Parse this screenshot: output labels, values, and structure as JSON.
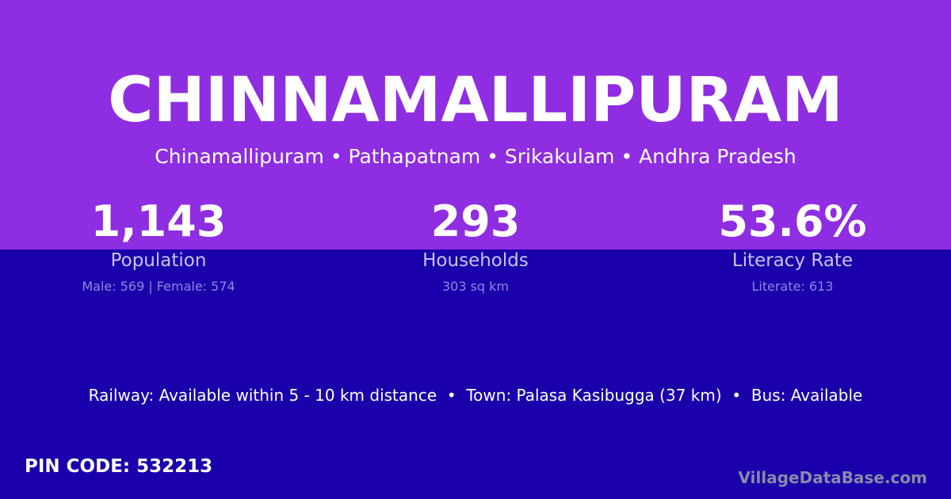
{
  "colors": {
    "top_bg": "#8e2de2",
    "bottom_bg": "#1a00aa"
  },
  "title": "CHINNAMALLIPURAM",
  "subtitle": "Chinamallipuram • Pathapatnam • Srikakulam • Andhra Pradesh",
  "stats": [
    {
      "value": "1,143",
      "label": "Population",
      "detail": "Male: 569 | Female: 574"
    },
    {
      "value": "293",
      "label": "Households",
      "detail": "303 sq km"
    },
    {
      "value": "53.6%",
      "label": "Literacy Rate",
      "detail": "Literate: 613"
    }
  ],
  "info": "Railway: Available within 5 - 10 km distance  •  Town: Palasa Kasibugga (37 km)  •  Bus: Available",
  "pin": "PIN CODE: 532213",
  "brand": "VillageDataBase.com"
}
